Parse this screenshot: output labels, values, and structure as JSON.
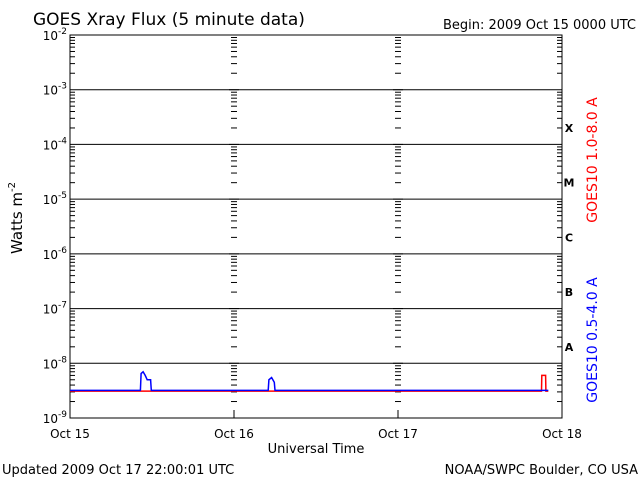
{
  "header": {
    "title": "GOES Xray Flux (5 minute data)",
    "begin_label": "Begin:  2009 Oct 15 0000 UTC"
  },
  "footer": {
    "updated": "Updated 2009 Oct 17 22:00:01 UTC",
    "credit": "NOAA/SWPC Boulder, CO USA"
  },
  "chart_data": {
    "type": "line",
    "title": "GOES Xray Flux (5 minute data)",
    "xlabel": "Universal Time",
    "ylabel": "Watts m",
    "ylabel_exponent": "-2",
    "yscale": "log",
    "ylim": [
      1e-09,
      0.01
    ],
    "xlim": [
      0,
      72
    ],
    "x_unit": "hours since 2009 Oct 15 0000 UTC",
    "x_ticks": [
      {
        "x": 0,
        "label": "Oct 15"
      },
      {
        "x": 24,
        "label": "Oct 16"
      },
      {
        "x": 48,
        "label": "Oct 17"
      },
      {
        "x": 72,
        "label": "Oct 18"
      }
    ],
    "y_ticks": [
      {
        "value": 1e-09,
        "base": "10",
        "exp": "-9"
      },
      {
        "value": 1e-08,
        "base": "10",
        "exp": "-8"
      },
      {
        "value": 1e-07,
        "base": "10",
        "exp": "-7"
      },
      {
        "value": 1e-06,
        "base": "10",
        "exp": "-6"
      },
      {
        "value": 1e-05,
        "base": "10",
        "exp": "-5"
      },
      {
        "value": 0.0001,
        "base": "10",
        "exp": "-4"
      },
      {
        "value": 0.001,
        "base": "10",
        "exp": "-3"
      },
      {
        "value": 0.01,
        "base": "10",
        "exp": "-2"
      }
    ],
    "flare_classes": [
      {
        "label": "X",
        "value": 0.0002
      },
      {
        "label": "M",
        "value": 2e-05
      },
      {
        "label": "C",
        "value": 2e-06
      },
      {
        "label": "B",
        "value": 2e-07
      },
      {
        "label": "A",
        "value": 2e-08
      }
    ],
    "grid": true,
    "legend_position": "right",
    "series": [
      {
        "name": "GOES10 1.0-8.0 A",
        "color": "#ff0000",
        "points": [
          [
            0,
            3.1e-09
          ],
          [
            69.0,
            3.1e-09
          ],
          [
            69.05,
            6e-09
          ],
          [
            69.6,
            6e-09
          ],
          [
            69.65,
            3.1e-09
          ],
          [
            70.0,
            3.1e-09
          ]
        ]
      },
      {
        "name": "GOES10 0.5-4.0 A",
        "color": "#0000ff",
        "points": [
          [
            0,
            3.2e-09
          ],
          [
            10.3,
            3.2e-09
          ],
          [
            10.4,
            6.5e-09
          ],
          [
            10.7,
            7e-09
          ],
          [
            11.0,
            6e-09
          ],
          [
            11.3,
            5e-09
          ],
          [
            11.8,
            5e-09
          ],
          [
            11.9,
            3.2e-09
          ],
          [
            29.0,
            3.2e-09
          ],
          [
            29.1,
            5e-09
          ],
          [
            29.5,
            5.5e-09
          ],
          [
            29.9,
            4.5e-09
          ],
          [
            30.0,
            3.2e-09
          ],
          [
            70.0,
            3.2e-09
          ]
        ]
      }
    ]
  }
}
